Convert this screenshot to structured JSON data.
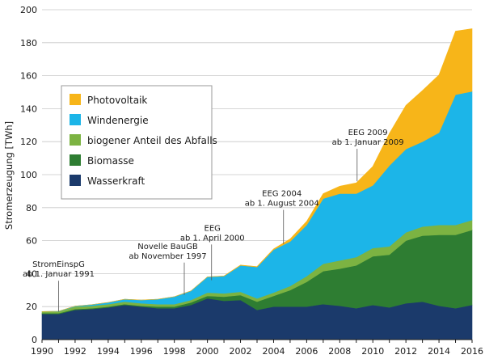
{
  "chart_data": {
    "type": "area",
    "stacked": true,
    "title": "",
    "xlabel": "",
    "ylabel": "Stromerzeugung [TWh]",
    "xlim": [
      1990,
      2016
    ],
    "ylim": [
      0,
      200
    ],
    "yticks": [
      0,
      20,
      40,
      60,
      80,
      100,
      120,
      140,
      160,
      180,
      200
    ],
    "xticks": [
      1990,
      1992,
      1994,
      1996,
      1998,
      2000,
      2002,
      2004,
      2006,
      2008,
      2010,
      2012,
      2014,
      2016
    ],
    "grid": true,
    "legend_position": "top-left",
    "x": [
      1990,
      1991,
      1992,
      1993,
      1994,
      1995,
      1996,
      1997,
      1998,
      1999,
      2000,
      2001,
      2002,
      2003,
      2004,
      2005,
      2006,
      2007,
      2008,
      2009,
      2010,
      2011,
      2012,
      2013,
      2014,
      2015,
      2016
    ],
    "series": [
      {
        "name": "Wasserkraft",
        "color": "#1b3a6b",
        "values": [
          15.5,
          15.5,
          18,
          18.5,
          19.5,
          21,
          20,
          19,
          19,
          21,
          25,
          23.5,
          24,
          18,
          20,
          20,
          20,
          21.5,
          20.5,
          19,
          21,
          19.5,
          22,
          23,
          20.5,
          19,
          21
        ]
      },
      {
        "name": "Biomasse",
        "color": "#2e7d32",
        "values": [
          0.5,
          0.5,
          0.5,
          0.5,
          0.5,
          0.5,
          0.5,
          1,
          1,
          1.5,
          1.5,
          2.5,
          3,
          5,
          6.5,
          10,
          15,
          20,
          22.5,
          26,
          29.5,
          32,
          38,
          40,
          43,
          44.5,
          45.5
        ]
      },
      {
        "name": "biogener Anteil des Abfalls",
        "color": "#7cb342",
        "values": [
          1,
          1,
          1.5,
          1.5,
          1.5,
          1.5,
          1.5,
          1.5,
          1.5,
          1.5,
          2,
          2,
          2,
          2,
          2,
          2.5,
          3.5,
          4.5,
          5,
          5,
          5,
          5,
          5,
          5.5,
          6,
          6,
          6
        ]
      },
      {
        "name": "Windenergie",
        "color": "#1cb5e8",
        "values": [
          0,
          0.2,
          0.3,
          0.7,
          1,
          1.5,
          2,
          3,
          4.5,
          5.5,
          9.5,
          10.5,
          16,
          19,
          26,
          27,
          31,
          39.5,
          40.5,
          38.5,
          38,
          49,
          50.5,
          51.5,
          56,
          79,
          78
        ]
      },
      {
        "name": "Photovoltaik",
        "color": "#f7b519",
        "values": [
          0,
          0,
          0,
          0,
          0,
          0,
          0,
          0,
          0,
          0,
          0,
          0.1,
          0.2,
          0.3,
          0.5,
          1.5,
          2.2,
          3,
          4.5,
          6.5,
          11.5,
          19.5,
          26.5,
          31,
          35,
          38.5,
          38
        ]
      }
    ],
    "annotations": [
      {
        "lines": [
          "StromEinspG",
          "ab 1. Januar 1991"
        ],
        "x": 1991,
        "y": 17,
        "label_y": 44,
        "anchor": "middle",
        "label_x": 1991
      },
      {
        "lines": [
          "Novelle BauGB",
          "ab November 1997"
        ],
        "x": 1998.6,
        "y": 27,
        "label_y": 55,
        "anchor": "middle",
        "label_x": 1997.6
      },
      {
        "lines": [
          "EEG",
          "ab 1. April 2000"
        ],
        "x": 2000.25,
        "y": 36,
        "label_y": 66,
        "anchor": "middle",
        "label_x": 2000.3
      },
      {
        "lines": [
          "EEG 2004",
          "ab 1. August 2004"
        ],
        "x": 2004.6,
        "y": 58,
        "label_y": 87,
        "anchor": "middle",
        "label_x": 2004.5
      },
      {
        "lines": [
          "EEG 2009",
          "ab 1. Januar 2009"
        ],
        "x": 2009.05,
        "y": 96,
        "label_y": 124,
        "anchor": "middle",
        "label_x": 2009.7
      }
    ]
  }
}
